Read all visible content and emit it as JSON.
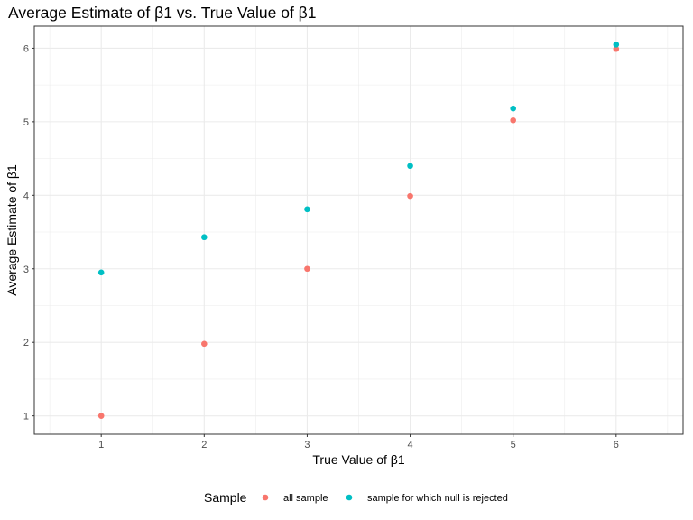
{
  "chart_data": {
    "type": "scatter",
    "title": "Average Estimate of β1 vs. True Value of β1",
    "xlabel": "True Value of β1",
    "ylabel": "Average Estimate of β1",
    "xlim": [
      0.35,
      6.65
    ],
    "ylim": [
      0.75,
      6.3
    ],
    "x_ticks": [
      1,
      2,
      3,
      4,
      5,
      6
    ],
    "y_ticks": [
      1,
      2,
      3,
      4,
      5,
      6
    ],
    "grid": true,
    "legend": {
      "title": "Sample",
      "position": "bottom"
    },
    "series": [
      {
        "name": "all sample",
        "color": "#f8766d",
        "x": [
          1,
          2,
          3,
          4,
          5,
          6
        ],
        "y": [
          1.0,
          1.98,
          3.0,
          3.99,
          5.02,
          5.99
        ]
      },
      {
        "name": "sample for which null is rejected",
        "color": "#00bfc4",
        "x": [
          1,
          2,
          3,
          4,
          5,
          6
        ],
        "y": [
          2.95,
          3.43,
          3.81,
          4.4,
          5.18,
          6.05
        ]
      }
    ]
  }
}
